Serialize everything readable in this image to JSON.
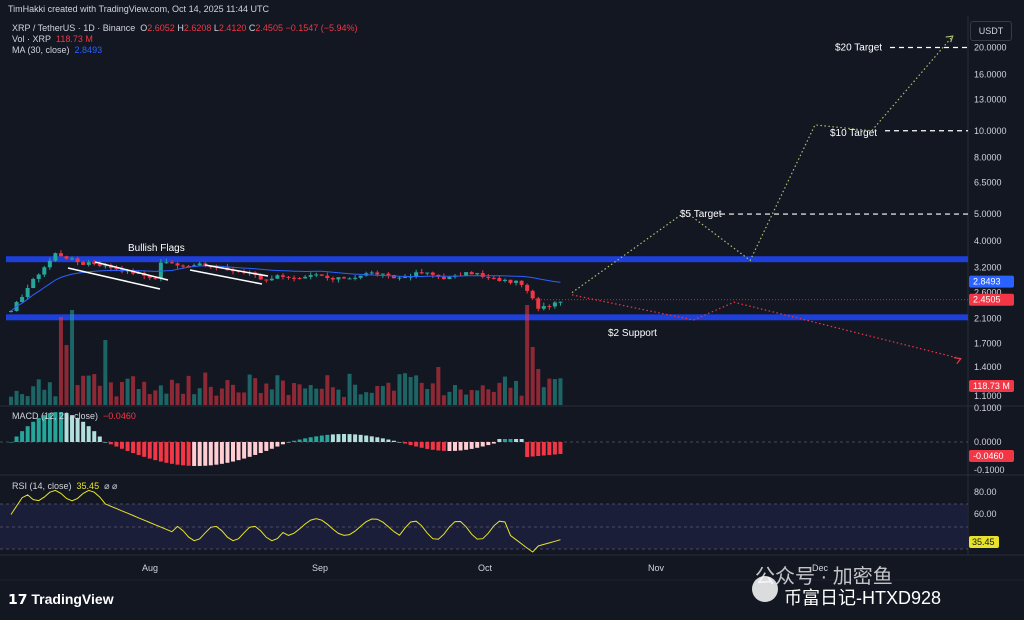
{
  "header": {
    "caption": "TimHakki created with TradingView.com, Oct 14, 2025 11:44 UTC"
  },
  "legend": {
    "symbol": "XRP / TetherUS · 1D · Binance",
    "ohlc": {
      "O": "O",
      "o_val": "2.6052",
      "H": "H",
      "h_val": "2.6208",
      "L": "L",
      "l_val": "2.4120",
      "C": "C",
      "c_val": "2.4505",
      "chg": "−0.1547 (−5.94%)"
    },
    "vol_label": "Vol · XRP",
    "vol_val": "118.73 M",
    "ma_label": "MA (30, close)",
    "ma_val": "2.8493"
  },
  "currency_button": "USDT",
  "macd_legend": {
    "label": "MACD (12, 26, close)",
    "val": "−0.0460"
  },
  "rsi_legend": {
    "label": "RSI (14, close)",
    "val": "35.45",
    "extra": "⌀ ⌀"
  },
  "brand": "TradingView",
  "watermark": {
    "line1": "公众号 · 加密鱼",
    "line2": "币富日记-HTXD928"
  },
  "colors": {
    "up": "#26a69a",
    "down": "#f23645",
    "ma": "#2962ff",
    "zone": "#1e3fd8",
    "target": "#ffffff",
    "bull_path": "#a6c36f",
    "bear_path": "#f23645"
  },
  "chart_data": {
    "type": "candlestick",
    "title": "XRP / TetherUS · 1D · Binance",
    "y_scale": "log",
    "price_ticks": [
      "20.0000",
      "16.0000",
      "13.0000",
      "10.0000",
      "8.0000",
      "6.5000",
      "5.0000",
      "4.0000",
      "3.2000",
      "2.6000",
      "2.1000",
      "1.7000",
      "1.4000",
      "1.1000"
    ],
    "time_ticks": [
      "Aug",
      "Sep",
      "Oct",
      "Nov",
      "Dec"
    ],
    "last_price": "2.4505",
    "ma_value": "2.8493",
    "volume_last": "118.73 M",
    "support_zones": [
      {
        "low": 2.1,
        "high": 2.17
      },
      {
        "low": 3.4,
        "high": 3.52
      }
    ],
    "annotations": {
      "bullish_flags": "Bullish Flags",
      "support": "$2 Support",
      "target_5": "$5 Target",
      "target_10": "$10 Target",
      "target_20": "$20 Target"
    },
    "targets": [
      5,
      10,
      20
    ],
    "bull_projection": [
      [
        0,
        2.6
      ],
      [
        14,
        5.1
      ],
      [
        22,
        3.4
      ],
      [
        30,
        10.5
      ],
      [
        37,
        10.0
      ],
      [
        47,
        22.0
      ]
    ],
    "bear_projection": [
      [
        0,
        2.55
      ],
      [
        15,
        2.07
      ],
      [
        20,
        2.4
      ],
      [
        48,
        1.5
      ]
    ],
    "macd": {
      "value": "−0.0460",
      "ticks": [
        "0.1000",
        "0.0000",
        "-0.0460",
        "-0.1000"
      ]
    },
    "rsi": {
      "value": "35.45",
      "ticks": [
        "80.00",
        "60.00",
        "35.45"
      ]
    }
  }
}
